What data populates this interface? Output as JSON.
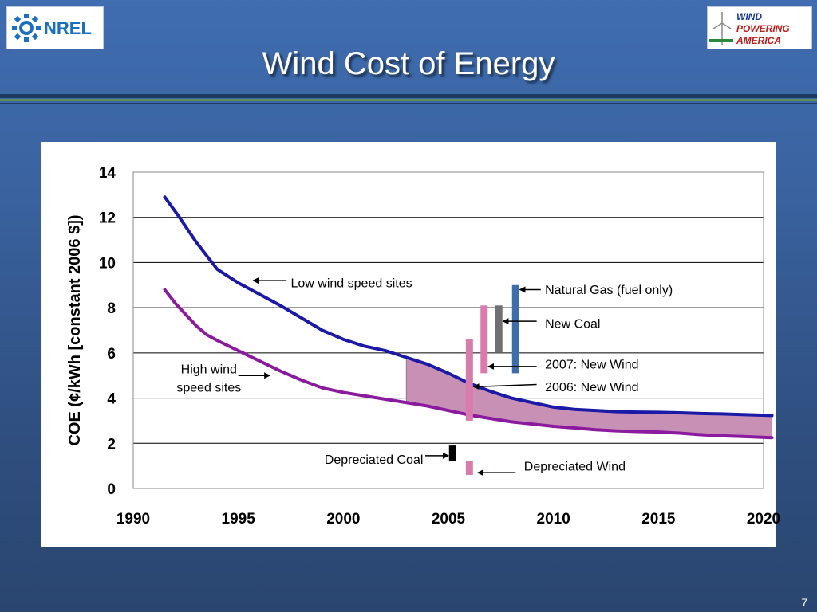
{
  "slide": {
    "title": "Wind Cost of Energy",
    "page_number": "7",
    "logo_left_text": "NREL",
    "logo_right_lines": [
      "WIND",
      "POWERING",
      "AMERICA"
    ]
  },
  "chart_data": {
    "type": "line",
    "title": "",
    "xlabel": "",
    "ylabel": "COE (¢/kWh [constant 2006 $])",
    "xlim": [
      1990,
      2020
    ],
    "ylim": [
      0,
      14
    ],
    "xticks": [
      1990,
      1995,
      2000,
      2005,
      2010,
      2015,
      2020
    ],
    "yticks": [
      0,
      2,
      4,
      6,
      8,
      10,
      12,
      14
    ],
    "grid": "horizontal",
    "colors": {
      "low_wind": "#1a1aa6",
      "high_wind": "#8a1a9e",
      "band_fill": "#c890b4",
      "wind_bar": "#d97bad",
      "coal_bar": "#707070",
      "gas_bar": "#3d6ea8",
      "depreciated_coal": "#000000"
    },
    "series": [
      {
        "name": "Low wind speed sites",
        "color_key": "low_wind",
        "points": [
          [
            1991.5,
            12.9
          ],
          [
            1992.2,
            12.0
          ],
          [
            1993.0,
            10.9
          ],
          [
            1993.5,
            10.3
          ],
          [
            1994.0,
            9.7
          ],
          [
            1995,
            9.1
          ],
          [
            1996,
            8.6
          ],
          [
            1997,
            8.1
          ],
          [
            1998,
            7.55
          ],
          [
            1999,
            7.0
          ],
          [
            2000,
            6.6
          ],
          [
            2001,
            6.3
          ],
          [
            2002,
            6.1
          ],
          [
            2003,
            5.8
          ],
          [
            2004,
            5.5
          ],
          [
            2005,
            5.1
          ],
          [
            2006,
            4.65
          ],
          [
            2007,
            4.3
          ],
          [
            2008,
            4.0
          ],
          [
            2009,
            3.8
          ],
          [
            2010,
            3.6
          ],
          [
            2011,
            3.5
          ],
          [
            2012,
            3.45
          ],
          [
            2013,
            3.4
          ],
          [
            2014,
            3.38
          ],
          [
            2015,
            3.37
          ],
          [
            2016,
            3.35
          ],
          [
            2017,
            3.32
          ],
          [
            2018,
            3.3
          ],
          [
            2019,
            3.27
          ],
          [
            2020.4,
            3.23
          ]
        ]
      },
      {
        "name": "High wind speed sites",
        "color_key": "high_wind",
        "points": [
          [
            1991.5,
            8.8
          ],
          [
            1992,
            8.2
          ],
          [
            1993,
            7.2
          ],
          [
            1993.5,
            6.8
          ],
          [
            1994,
            6.55
          ],
          [
            1995,
            6.1
          ],
          [
            1996,
            5.65
          ],
          [
            1997,
            5.2
          ],
          [
            1998,
            4.8
          ],
          [
            1999,
            4.45
          ],
          [
            2000,
            4.25
          ],
          [
            2001,
            4.1
          ],
          [
            2002,
            3.95
          ],
          [
            2003,
            3.8
          ],
          [
            2004,
            3.65
          ],
          [
            2005,
            3.45
          ],
          [
            2006,
            3.25
          ],
          [
            2007,
            3.1
          ],
          [
            2008,
            2.95
          ],
          [
            2009,
            2.85
          ],
          [
            2010,
            2.75
          ],
          [
            2011,
            2.68
          ],
          [
            2012,
            2.6
          ],
          [
            2013,
            2.55
          ],
          [
            2014,
            2.52
          ],
          [
            2015,
            2.5
          ],
          [
            2016,
            2.45
          ],
          [
            2017,
            2.38
          ],
          [
            2018,
            2.33
          ],
          [
            2019,
            2.3
          ],
          [
            2020.4,
            2.25
          ]
        ]
      }
    ],
    "band": {
      "x_start": 2003,
      "x_end": 2020.4,
      "between": [
        "Low wind speed sites",
        "High wind speed sites"
      ]
    },
    "range_bars": [
      {
        "name": "Natural Gas (fuel only)",
        "x": 2008.2,
        "low": 5.1,
        "high": 9.0,
        "color_key": "gas_bar"
      },
      {
        "name": "New Coal",
        "x": 2007.4,
        "low": 6.0,
        "high": 8.1,
        "color_key": "coal_bar"
      },
      {
        "name": "2007: New Wind",
        "x": 2006.7,
        "low": 5.1,
        "high": 8.1,
        "color_key": "wind_bar"
      },
      {
        "name": "2006: New Wind",
        "x": 2006.0,
        "low": 3.0,
        "high": 6.6,
        "color_key": "wind_bar"
      },
      {
        "name": "Depreciated Coal",
        "x": 2005.2,
        "low": 1.2,
        "high": 1.9,
        "color_key": "depreciated_coal"
      },
      {
        "name": "Depreciated Wind",
        "x": 2006.0,
        "low": 0.6,
        "high": 1.2,
        "color_key": "wind_bar"
      }
    ],
    "annotations": [
      {
        "lines": [
          "Low wind speed sites"
        ],
        "anchor": "start",
        "text_x": 1997.5,
        "text_y": 8.9,
        "arrow_from": [
          1997.3,
          9.2
        ],
        "arrow_to": [
          1995.7,
          9.2
        ]
      },
      {
        "lines": [
          "High wind",
          "speed sites"
        ],
        "anchor": "middle",
        "text_x": 1993.6,
        "text_y": 5.1,
        "arrow_from": [
          1995.0,
          5.0
        ],
        "arrow_to": [
          1996.5,
          5.0
        ]
      },
      {
        "lines": [
          "Natural Gas (fuel only)"
        ],
        "anchor": "start",
        "text_x": 2009.6,
        "text_y": 8.6,
        "arrow_from": [
          2009.4,
          8.8
        ],
        "arrow_to": [
          2008.4,
          8.8
        ]
      },
      {
        "lines": [
          "New Coal"
        ],
        "anchor": "start",
        "text_x": 2009.6,
        "text_y": 7.1,
        "arrow_from": [
          2009.2,
          7.4
        ],
        "arrow_to": [
          2007.6,
          7.4
        ]
      },
      {
        "lines": [
          "2007: New Wind"
        ],
        "anchor": "start",
        "text_x": 2009.6,
        "text_y": 5.3,
        "arrow_from": [
          2009.2,
          5.4
        ],
        "arrow_to": [
          2006.9,
          5.4
        ]
      },
      {
        "lines": [
          "2006: New Wind"
        ],
        "anchor": "start",
        "text_x": 2009.6,
        "text_y": 4.3,
        "arrow_from": [
          2009.2,
          4.6
        ],
        "arrow_to": [
          2006.2,
          4.5
        ]
      },
      {
        "lines": [
          "Depreciated Coal"
        ],
        "anchor": "end",
        "text_x": 2003.8,
        "text_y": 1.1,
        "arrow_from": [
          2003.9,
          1.45
        ],
        "arrow_to": [
          2005.0,
          1.45
        ]
      },
      {
        "lines": [
          "Depreciated Wind"
        ],
        "anchor": "start",
        "text_x": 2008.6,
        "text_y": 0.8,
        "arrow_from": [
          2008.2,
          0.7
        ],
        "arrow_to": [
          2006.4,
          0.7
        ]
      }
    ]
  }
}
